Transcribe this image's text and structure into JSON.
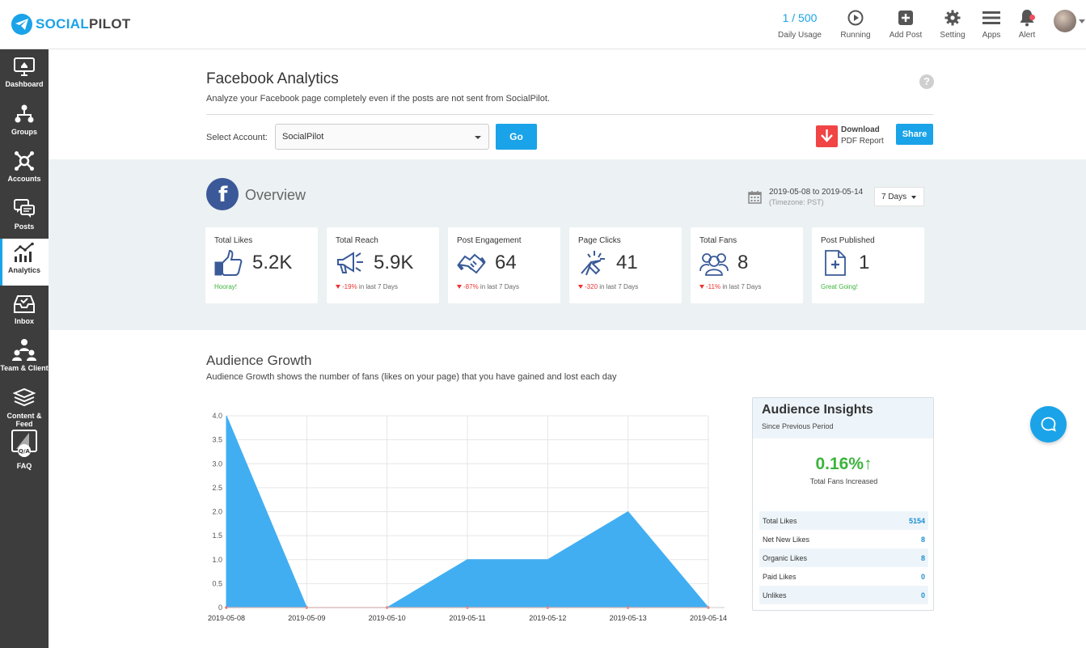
{
  "brand": {
    "name_part1": "SOCIAL",
    "name_part2": "PILOT"
  },
  "topbar": {
    "usage_count": "1 / 500",
    "usage_label": "Daily Usage",
    "running_label": "Running",
    "add_post_label": "Add Post",
    "setting_label": "Setting",
    "apps_label": "Apps",
    "alert_label": "Alert"
  },
  "sidebar": {
    "items": [
      {
        "label": "Dashboard",
        "icon": "monitor-icon"
      },
      {
        "label": "Groups",
        "icon": "groups-icon"
      },
      {
        "label": "Accounts",
        "icon": "accounts-icon"
      },
      {
        "label": "Posts",
        "icon": "posts-icon"
      },
      {
        "label": "Analytics",
        "icon": "analytics-icon"
      },
      {
        "label": "Inbox",
        "icon": "inbox-icon"
      },
      {
        "label": "Team & Client",
        "icon": "team-icon"
      },
      {
        "label": "Content & Feed",
        "icon": "content-icon"
      },
      {
        "label": "FAQ",
        "icon": "faq-icon"
      }
    ]
  },
  "header": {
    "title": "Facebook Analytics",
    "subtitle": "Analyze your Facebook page completely even if the posts are not sent from SocialPilot.",
    "help": "?",
    "select_label": "Select Account:",
    "account_value": "SocialPilot",
    "go_label": "Go",
    "download_label": "Download",
    "pdf_label": "PDF Report",
    "share_label": "Share"
  },
  "overview": {
    "fb_letter": "f",
    "title": "Overview",
    "date_range": "2019-05-08 to 2019-05-14",
    "timezone": "(Timezone: PST)",
    "days_value": "7 Days"
  },
  "stats": [
    {
      "label": "Total Likes",
      "value": "5.2K",
      "foot": "Hooray!",
      "foot_type": "positive",
      "icon": "thumbs-up-icon"
    },
    {
      "label": "Total Reach",
      "value": "5.9K",
      "change": "-19%",
      "suffix": "in last 7 Days",
      "foot_type": "negative",
      "icon": "megaphone-icon"
    },
    {
      "label": "Post Engagement",
      "value": "64",
      "change": "-87%",
      "suffix": "in last 7 Days",
      "foot_type": "negative",
      "icon": "handshake-icon"
    },
    {
      "label": "Page Clicks",
      "value": "41",
      "change": "-320",
      "suffix": "in last 7 Days",
      "foot_type": "negative",
      "icon": "cursor-click-icon"
    },
    {
      "label": "Total Fans",
      "value": "8",
      "change": "-11%",
      "suffix": "in last 7 Days",
      "foot_type": "negative",
      "icon": "fans-icon"
    },
    {
      "label": "Post Published",
      "value": "1",
      "foot": "Great Going!",
      "foot_type": "positive",
      "icon": "document-icon"
    }
  ],
  "audience_growth": {
    "title": "Audience Growth",
    "subtitle": "Audience Growth shows the number of fans (likes on your page) that you have gained and lost each day"
  },
  "chart_data": {
    "type": "area",
    "title": "",
    "xlabel": "",
    "ylabel": "",
    "categories": [
      "2019-05-08",
      "2019-05-09",
      "2019-05-10",
      "2019-05-11",
      "2019-05-12",
      "2019-05-13",
      "2019-05-14"
    ],
    "series": [
      {
        "values": [
          4,
          0,
          0,
          1,
          1,
          2,
          0
        ],
        "color": "#42aef2"
      },
      {
        "values": [
          0,
          0,
          0,
          0,
          0,
          0,
          0
        ],
        "color": "#f0544f"
      }
    ],
    "ylim": [
      0,
      4
    ],
    "yticks": [
      "0",
      "0.5",
      "1.0",
      "1.5",
      "2.0",
      "2.5",
      "3.0",
      "3.5",
      "4.0"
    ],
    "grid": true,
    "legend": "none"
  },
  "insights": {
    "title": "Audience Insights",
    "subtitle": "Since Previous Period",
    "big_value": "0.16%",
    "big_arrow": "↑",
    "big_label": "Total Fans Increased",
    "rows": [
      {
        "label": "Total Likes",
        "value": "5154"
      },
      {
        "label": "Net New Likes",
        "value": "8"
      },
      {
        "label": "Organic Likes",
        "value": "8"
      },
      {
        "label": "Paid Likes",
        "value": "0"
      },
      {
        "label": "Unlikes",
        "value": "0"
      }
    ]
  },
  "colors": {
    "accent": "#1aa3e8",
    "sidebar": "#3d3d3d",
    "positive": "#3cb43c",
    "negative": "#ee3333",
    "facebook": "#3b5998"
  }
}
